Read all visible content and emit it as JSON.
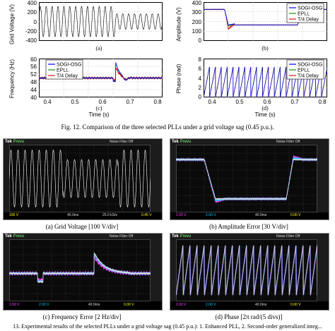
{
  "figure12": {
    "caption": "Fig. 12.   Comparison of the three selected PLLs under a grid voltage sag (0.45 p.u.).",
    "panels": [
      {
        "id": "a",
        "ylabel": "Grid Voltage (V)",
        "yticks": [
          "400",
          "200",
          "0",
          "-200",
          "-400"
        ],
        "label": "(a)"
      },
      {
        "id": "b",
        "ylabel": "Amplitude (V)",
        "yticks": [
          "400",
          "300",
          "200",
          "100",
          "0"
        ],
        "label": "(b)",
        "legend": [
          "SOGI-OSG",
          "EPLL",
          "T/4 Delay"
        ]
      },
      {
        "id": "c",
        "ylabel": "Frequency (Hz)",
        "yticks": [
          "60",
          "56",
          "52",
          "48",
          "44",
          "40"
        ],
        "label": "(c)",
        "legend": [
          "SOGI-OSG",
          "EPLL",
          "T/4 Delay"
        ],
        "xticks": [
          "0.4",
          "0.5",
          "0.6",
          "0.7",
          "0.8"
        ],
        "xlabel": "Time (s)"
      },
      {
        "id": "d",
        "ylabel": "Phase (rad)",
        "yticks": [
          "8",
          "6",
          "4",
          "2",
          "0"
        ],
        "label": "(d)",
        "legend": [
          "SOGI-OSG",
          "EPLL",
          "T/4 Delay"
        ],
        "xticks": [
          "0.4",
          "0.5",
          "0.6",
          "0.7",
          "0.8"
        ],
        "xlabel": "Time (s)"
      }
    ]
  },
  "figure13": {
    "caption": "13.  Experimental results of the selected PLLs under a grid voltage sag (0.45 p.u.): 1. Enhanced PLL, 2. Second-order generalized integ...",
    "scopes": [
      {
        "id": "a",
        "label": "(a) Grid Voltage [100 V/div]",
        "brand": "Tek",
        "status": "Prevu",
        "trigger": "Noise Filter Off",
        "footer": [
          "100 V",
          "40.0ms",
          "25.0 kS/s",
          "0.45 V"
        ]
      },
      {
        "id": "b",
        "label": "(b) Amplitude Error [30 V/div]",
        "brand": "Tek",
        "status": "Prevu",
        "trigger": "Noise Filter Off",
        "footer": [
          "2.00 V",
          "2.00 V",
          "40.0ms",
          "0.00 V"
        ]
      },
      {
        "id": "c",
        "label": "(c) Frequency Error [2 Hz/div]",
        "brand": "Tek",
        "status": "Prevu",
        "trigger": "Noise Filter Off",
        "footer": [
          "2.00 V",
          "2.00 V",
          "40.0ms",
          "0.00 V"
        ]
      },
      {
        "id": "d",
        "label": "(d) Phase [2π rad/(5 divs)]",
        "brand": "Tek",
        "status": "Prevu",
        "trigger": "Noise Filter Off",
        "footer": [
          "2.00 V",
          "2.00 V",
          "40.0ms",
          "0.00 V"
        ]
      }
    ]
  },
  "colors": {
    "sogi": "#0000ff",
    "epll": "#1a8f1a",
    "delay": "#e01010",
    "ch1": "#e8e000",
    "ch2": "#00c8ff",
    "ch3": "#ff40ff",
    "ch4": "#40ff40"
  }
}
